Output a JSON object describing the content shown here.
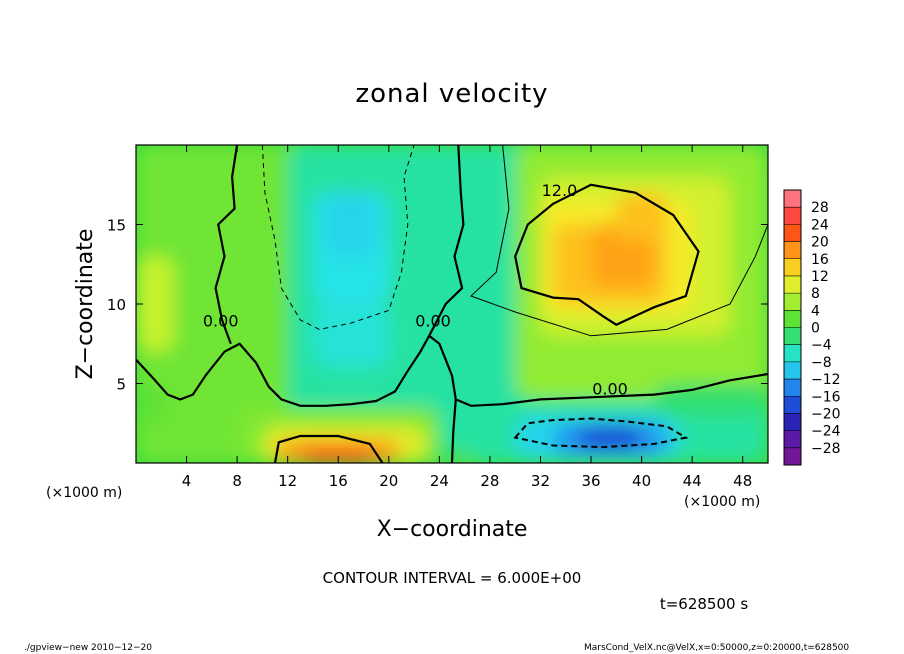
{
  "chart_data": {
    "type": "heatmap",
    "title": "zonal velocity",
    "xlabel": "X−coordinate",
    "ylabel": "Z−coordinate",
    "x_unit_label": "(×1000 m)",
    "z_unit_label": "(×1000 m)",
    "xlim": [
      0,
      50
    ],
    "ylim": [
      0,
      20
    ],
    "x_ticks": [
      4,
      8,
      12,
      16,
      20,
      24,
      28,
      32,
      36,
      40,
      44,
      48
    ],
    "y_ticks": [
      5,
      10,
      15
    ],
    "x_tick_labels": [
      "4",
      "8",
      "12",
      "16",
      "20",
      "24",
      "28",
      "32",
      "36",
      "40",
      "44",
      "48"
    ],
    "y_tick_labels": [
      "5",
      "10",
      "15"
    ],
    "colorbar_labels": [
      "28",
      "24",
      "20",
      "16",
      "12",
      "8",
      "4",
      "0",
      "−4",
      "−8",
      "−12",
      "−16",
      "−20",
      "−24",
      "−28"
    ],
    "colorbar_levels": [
      28,
      24,
      20,
      16,
      12,
      8,
      4,
      0,
      -4,
      -8,
      -12,
      -16,
      -20,
      -24,
      -28
    ],
    "contour_interval_text": "CONTOUR INTERVAL = 6.000E+00",
    "time_text": "t=628500 s",
    "contour_labels": [
      {
        "text": "12.0",
        "x": 33.5,
        "z": 16.8
      },
      {
        "text": "0.00",
        "x": 37.5,
        "z": 4.3
      },
      {
        "text": "0.00",
        "x": 23.5,
        "z": 8.6
      },
      {
        "text": "0.00",
        "x": 6.7,
        "z": 8.6
      }
    ],
    "features": [
      {
        "name": "jet maximum",
        "x": 36.5,
        "z": 13.0,
        "u": 16
      },
      {
        "name": "surface jet",
        "x": 15.5,
        "z": 0.6,
        "u": 22
      },
      {
        "name": "easterly core",
        "x": 37.0,
        "z": 1.6,
        "u": -19
      },
      {
        "name": "easterly column",
        "x": 17.5,
        "z": 13.0,
        "u": -8
      }
    ],
    "grid": false
  },
  "footer": {
    "left": "./gpview−new  2010−12−20",
    "right": "MarsCond_VelX.nc@VelX,x=0:50000,z=0:20000,t=628500"
  }
}
